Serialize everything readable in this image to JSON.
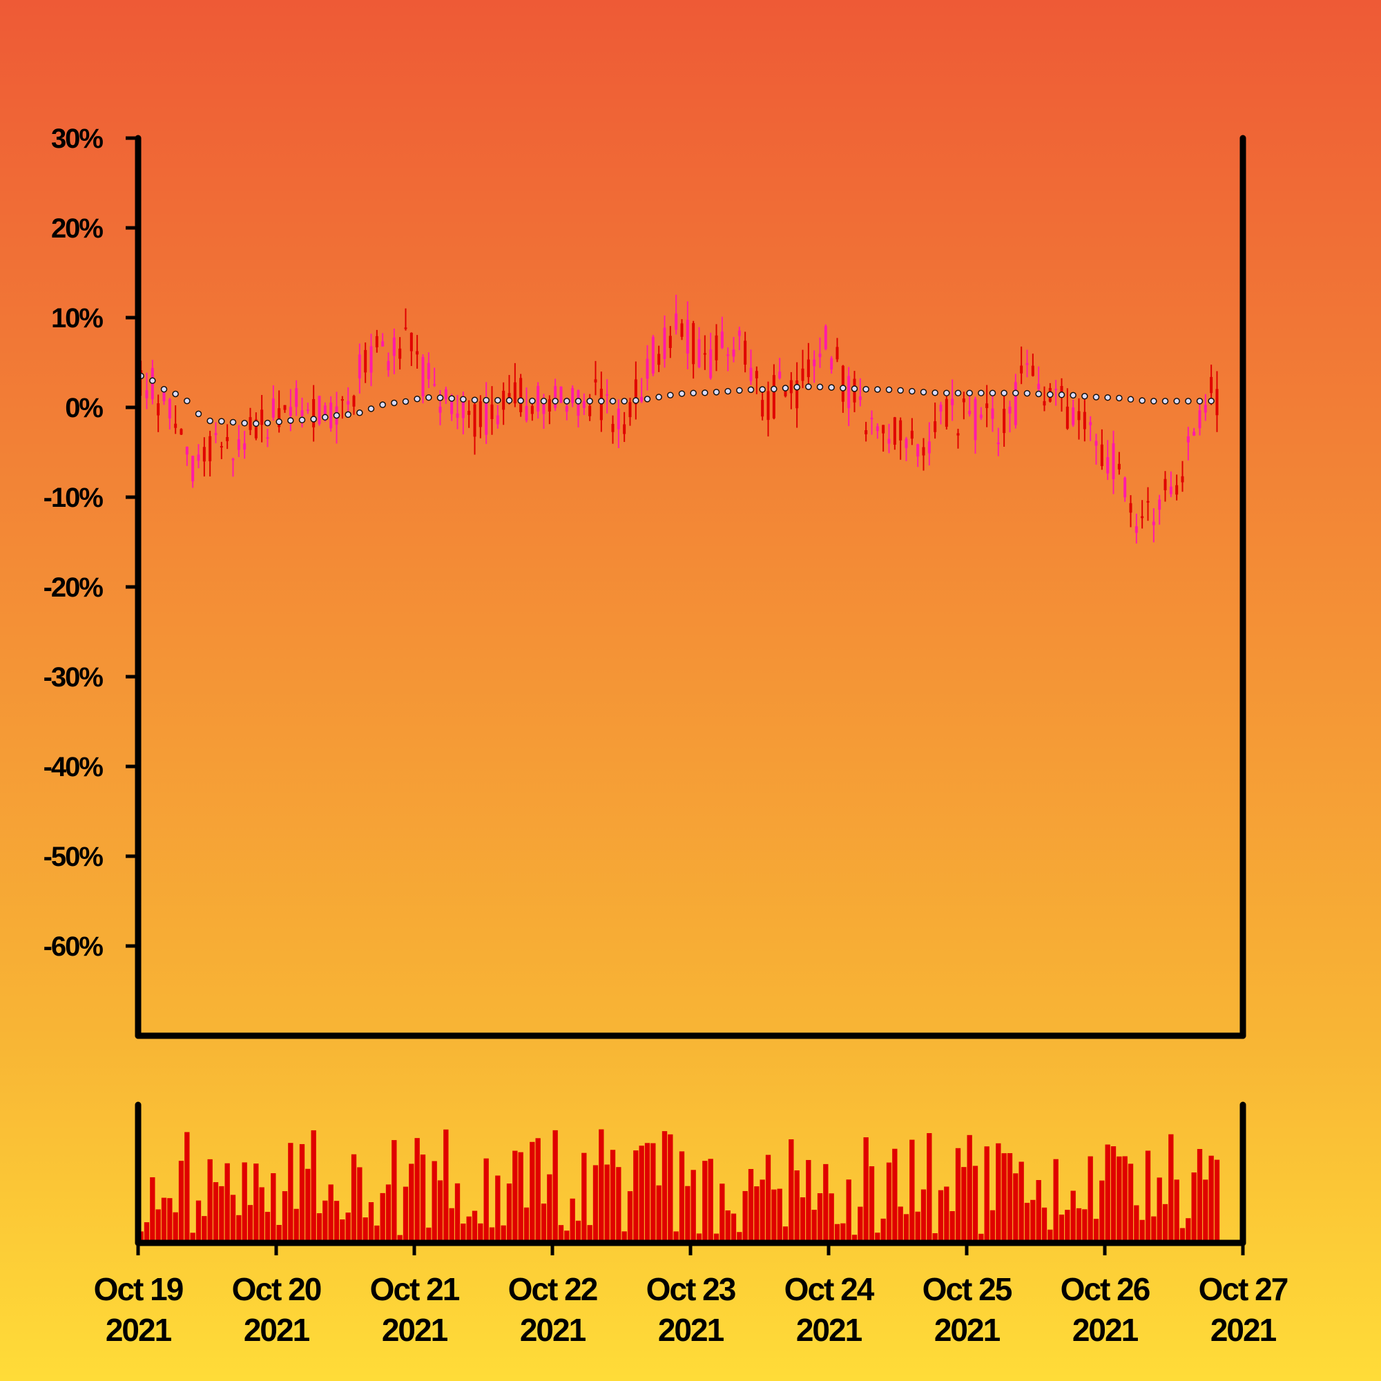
{
  "chart_data": {
    "type": "candlestick",
    "title": "",
    "xlabel": "",
    "ylabel": "",
    "x_range": [
      "2021-10-19",
      "2021-10-27"
    ],
    "ylim": [
      -70,
      30
    ],
    "y_ticks": [
      30,
      20,
      10,
      0,
      -10,
      -20,
      -30,
      -40,
      -50,
      -60
    ],
    "y_tick_labels": [
      "30%",
      "20%",
      "10%",
      "0%",
      "-10%",
      "-20%",
      "-30%",
      "-40%",
      "-50%",
      "-60%"
    ],
    "x_ticks": [
      "2021-10-19",
      "2021-10-20",
      "2021-10-21",
      "2021-10-22",
      "2021-10-23",
      "2021-10-24",
      "2021-10-25",
      "2021-10-26",
      "2021-10-27"
    ],
    "x_tick_labels": [
      {
        "line1": "Oct 19",
        "line2": "2021"
      },
      {
        "line1": "Oct 20",
        "line2": "2021"
      },
      {
        "line1": "Oct 21",
        "line2": "2021"
      },
      {
        "line1": "Oct 22",
        "line2": "2021"
      },
      {
        "line1": "Oct 23",
        "line2": "2021"
      },
      {
        "line1": "Oct 24",
        "line2": "2021"
      },
      {
        "line1": "Oct 25",
        "line2": "2021"
      },
      {
        "line1": "Oct 26",
        "line2": "2021"
      },
      {
        "line1": "Oct 27",
        "line2": "2021"
      }
    ],
    "price_series_anchors": [
      {
        "t": "2021-10-19 00:00",
        "v": 3
      },
      {
        "t": "2021-10-19 06:00",
        "v": 0
      },
      {
        "t": "2021-10-19 10:00",
        "v": -7
      },
      {
        "t": "2021-10-19 14:00",
        "v": -4
      },
      {
        "t": "2021-10-19 20:00",
        "v": -2
      },
      {
        "t": "2021-10-20 04:00",
        "v": 0
      },
      {
        "t": "2021-10-20 10:00",
        "v": -1
      },
      {
        "t": "2021-10-20 16:00",
        "v": 6
      },
      {
        "t": "2021-10-20 22:00",
        "v": 7
      },
      {
        "t": "2021-10-21 02:00",
        "v": 3
      },
      {
        "t": "2021-10-21 06:00",
        "v": -1
      },
      {
        "t": "2021-10-21 12:00",
        "v": -1
      },
      {
        "t": "2021-10-21 18:00",
        "v": 1
      },
      {
        "t": "2021-10-22 06:00",
        "v": 1
      },
      {
        "t": "2021-10-22 12:00",
        "v": -1
      },
      {
        "t": "2021-10-22 18:00",
        "v": 6
      },
      {
        "t": "2021-10-22 22:00",
        "v": 9
      },
      {
        "t": "2021-10-23 02:00",
        "v": 5
      },
      {
        "t": "2021-10-23 08:00",
        "v": 8
      },
      {
        "t": "2021-10-23 12:00",
        "v": 1
      },
      {
        "t": "2021-10-23 18:00",
        "v": 2
      },
      {
        "t": "2021-10-23 22:00",
        "v": 8
      },
      {
        "t": "2021-10-24 04:00",
        "v": 1
      },
      {
        "t": "2021-10-24 08:00",
        "v": -2
      },
      {
        "t": "2021-10-24 14:00",
        "v": -4
      },
      {
        "t": "2021-10-24 22:00",
        "v": -1
      },
      {
        "t": "2021-10-25 06:00",
        "v": -2
      },
      {
        "t": "2021-10-25 10:00",
        "v": 3
      },
      {
        "t": "2021-10-25 16:00",
        "v": 0
      },
      {
        "t": "2021-10-26 00:00",
        "v": -5
      },
      {
        "t": "2021-10-26 06:00",
        "v": -12
      },
      {
        "t": "2021-10-26 12:00",
        "v": -8
      },
      {
        "t": "2021-10-26 18:00",
        "v": 1
      },
      {
        "t": "2021-10-27 00:00",
        "v": 3
      },
      {
        "t": "2021-10-27 06:00",
        "v": 1
      }
    ],
    "moving_average": [
      {
        "t": "2021-10-19 00:00",
        "v": 3.5
      },
      {
        "t": "2021-10-19 06:00",
        "v": 1.5
      },
      {
        "t": "2021-10-19 12:00",
        "v": -1.5
      },
      {
        "t": "2021-10-19 20:00",
        "v": -1.8
      },
      {
        "t": "2021-10-20 04:00",
        "v": -1.4
      },
      {
        "t": "2021-10-20 12:00",
        "v": -0.8
      },
      {
        "t": "2021-10-20 20:00",
        "v": 0.5
      },
      {
        "t": "2021-10-21 02:00",
        "v": 1.1
      },
      {
        "t": "2021-10-21 12:00",
        "v": 0.8
      },
      {
        "t": "2021-10-22 00:00",
        "v": 0.7
      },
      {
        "t": "2021-10-22 12:00",
        "v": 0.7
      },
      {
        "t": "2021-10-23 00:00",
        "v": 1.6
      },
      {
        "t": "2021-10-23 12:00",
        "v": 2.0
      },
      {
        "t": "2021-10-23 20:00",
        "v": 2.3
      },
      {
        "t": "2021-10-24 08:00",
        "v": 2.0
      },
      {
        "t": "2021-10-24 20:00",
        "v": 1.6
      },
      {
        "t": "2021-10-25 08:00",
        "v": 1.6
      },
      {
        "t": "2021-10-25 16:00",
        "v": 1.4
      },
      {
        "t": "2021-10-26 00:00",
        "v": 1.1
      },
      {
        "t": "2021-10-26 08:00",
        "v": 0.7
      },
      {
        "t": "2021-10-26 16:00",
        "v": 0.7
      },
      {
        "t": "2021-10-27 00:00",
        "v": 0.8
      },
      {
        "t": "2021-10-27 06:00",
        "v": 0.8
      }
    ],
    "volume": "present, unlabeled",
    "grid": false,
    "legend": "none",
    "colors": {
      "up_candle": "#ff1aa8",
      "down_candle": "#e00000",
      "volume": "#e00000",
      "moving_average_point": "#d9dcff",
      "axis": "#000000"
    }
  }
}
